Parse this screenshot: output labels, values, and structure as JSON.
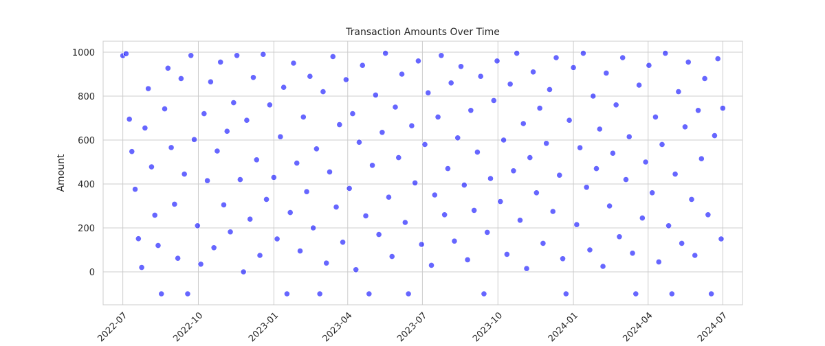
{
  "chart_data": {
    "type": "scatter",
    "title": "Transaction Amounts Over Time",
    "xlabel": "",
    "ylabel": "Amount",
    "x_range": [
      "2022-06-07",
      "2024-07-25"
    ],
    "ylim": [
      -150,
      1050
    ],
    "x_ticks": [
      "2022-07",
      "2022-10",
      "2023-01",
      "2023-04",
      "2023-07",
      "2023-10",
      "2024-01",
      "2024-04",
      "2024-07"
    ],
    "y_ticks": [
      0,
      200,
      400,
      600,
      800,
      1000
    ],
    "grid": true,
    "style": {
      "background": "#ffffff",
      "grid_color": "#cccccc",
      "point_color": "#0000ff",
      "point_opacity": 0.6,
      "point_edge_color": "#ffffff",
      "text_color": "#262626"
    },
    "series": [
      {
        "points": [
          [
            "2022-07-01",
            984
          ],
          [
            "2022-07-05",
            993
          ],
          [
            "2022-07-09",
            695
          ],
          [
            "2022-07-12",
            548
          ],
          [
            "2022-07-16",
            376
          ],
          [
            "2022-07-20",
            151
          ],
          [
            "2022-07-24",
            20
          ],
          [
            "2022-07-28",
            655
          ],
          [
            "2022-08-01",
            834
          ],
          [
            "2022-08-05",
            478
          ],
          [
            "2022-08-09",
            258
          ],
          [
            "2022-08-13",
            120
          ],
          [
            "2022-08-17",
            -100
          ],
          [
            "2022-08-21",
            742
          ],
          [
            "2022-08-25",
            927
          ],
          [
            "2022-08-29",
            566
          ],
          [
            "2022-09-02",
            308
          ],
          [
            "2022-09-06",
            62
          ],
          [
            "2022-09-10",
            880
          ],
          [
            "2022-09-14",
            445
          ],
          [
            "2022-09-18",
            -100
          ],
          [
            "2022-09-22",
            985
          ],
          [
            "2022-09-26",
            602
          ],
          [
            "2022-09-30",
            210
          ],
          [
            "2022-10-04",
            35
          ],
          [
            "2022-10-08",
            720
          ],
          [
            "2022-10-12",
            415
          ],
          [
            "2022-10-16",
            865
          ],
          [
            "2022-10-20",
            110
          ],
          [
            "2022-10-24",
            550
          ],
          [
            "2022-10-28",
            955
          ],
          [
            "2022-11-01",
            305
          ],
          [
            "2022-11-05",
            640
          ],
          [
            "2022-11-09",
            182
          ],
          [
            "2022-11-13",
            770
          ],
          [
            "2022-11-17",
            985
          ],
          [
            "2022-11-21",
            420
          ],
          [
            "2022-11-25",
            0
          ],
          [
            "2022-11-29",
            690
          ],
          [
            "2022-12-03",
            240
          ],
          [
            "2022-12-07",
            885
          ],
          [
            "2022-12-11",
            510
          ],
          [
            "2022-12-15",
            75
          ],
          [
            "2022-12-19",
            990
          ],
          [
            "2022-12-23",
            330
          ],
          [
            "2022-12-27",
            760
          ],
          [
            "2023-01-01",
            430
          ],
          [
            "2023-01-05",
            150
          ],
          [
            "2023-01-09",
            615
          ],
          [
            "2023-01-13",
            840
          ],
          [
            "2023-01-17",
            -100
          ],
          [
            "2023-01-21",
            270
          ],
          [
            "2023-01-25",
            950
          ],
          [
            "2023-01-29",
            495
          ],
          [
            "2023-02-02",
            95
          ],
          [
            "2023-02-06",
            705
          ],
          [
            "2023-02-10",
            365
          ],
          [
            "2023-02-14",
            890
          ],
          [
            "2023-02-18",
            200
          ],
          [
            "2023-02-22",
            560
          ],
          [
            "2023-02-26",
            -100
          ],
          [
            "2023-03-02",
            820
          ],
          [
            "2023-03-06",
            40
          ],
          [
            "2023-03-10",
            455
          ],
          [
            "2023-03-14",
            980
          ],
          [
            "2023-03-18",
            295
          ],
          [
            "2023-03-22",
            670
          ],
          [
            "2023-03-26",
            135
          ],
          [
            "2023-03-30",
            875
          ],
          [
            "2023-04-03",
            380
          ],
          [
            "2023-04-07",
            720
          ],
          [
            "2023-04-11",
            10
          ],
          [
            "2023-04-15",
            590
          ],
          [
            "2023-04-19",
            940
          ],
          [
            "2023-04-23",
            255
          ],
          [
            "2023-04-27",
            -100
          ],
          [
            "2023-05-01",
            485
          ],
          [
            "2023-05-05",
            805
          ],
          [
            "2023-05-09",
            170
          ],
          [
            "2023-05-13",
            635
          ],
          [
            "2023-05-17",
            995
          ],
          [
            "2023-05-21",
            340
          ],
          [
            "2023-05-25",
            70
          ],
          [
            "2023-05-29",
            750
          ],
          [
            "2023-06-02",
            520
          ],
          [
            "2023-06-06",
            900
          ],
          [
            "2023-06-10",
            225
          ],
          [
            "2023-06-14",
            -100
          ],
          [
            "2023-06-18",
            665
          ],
          [
            "2023-06-22",
            405
          ],
          [
            "2023-06-26",
            960
          ],
          [
            "2023-06-30",
            125
          ],
          [
            "2023-07-04",
            580
          ],
          [
            "2023-07-08",
            815
          ],
          [
            "2023-07-12",
            30
          ],
          [
            "2023-07-16",
            350
          ],
          [
            "2023-07-20",
            705
          ],
          [
            "2023-07-24",
            985
          ],
          [
            "2023-07-28",
            260
          ],
          [
            "2023-08-01",
            470
          ],
          [
            "2023-08-05",
            860
          ],
          [
            "2023-08-09",
            140
          ],
          [
            "2023-08-13",
            610
          ],
          [
            "2023-08-17",
            935
          ],
          [
            "2023-08-21",
            395
          ],
          [
            "2023-08-25",
            55
          ],
          [
            "2023-08-29",
            735
          ],
          [
            "2023-09-02",
            280
          ],
          [
            "2023-09-06",
            545
          ],
          [
            "2023-09-10",
            890
          ],
          [
            "2023-09-14",
            -100
          ],
          [
            "2023-09-18",
            180
          ],
          [
            "2023-09-22",
            425
          ],
          [
            "2023-09-26",
            780
          ],
          [
            "2023-09-30",
            960
          ],
          [
            "2023-10-04",
            320
          ],
          [
            "2023-10-08",
            600
          ],
          [
            "2023-10-12",
            80
          ],
          [
            "2023-10-16",
            855
          ],
          [
            "2023-10-20",
            460
          ],
          [
            "2023-10-24",
            995
          ],
          [
            "2023-10-28",
            235
          ],
          [
            "2023-11-01",
            675
          ],
          [
            "2023-11-05",
            15
          ],
          [
            "2023-11-09",
            520
          ],
          [
            "2023-11-13",
            910
          ],
          [
            "2023-11-17",
            360
          ],
          [
            "2023-11-21",
            745
          ],
          [
            "2023-11-25",
            130
          ],
          [
            "2023-11-29",
            585
          ],
          [
            "2023-12-03",
            830
          ],
          [
            "2023-12-07",
            275
          ],
          [
            "2023-12-11",
            975
          ],
          [
            "2023-12-15",
            440
          ],
          [
            "2023-12-19",
            60
          ],
          [
            "2023-12-23",
            -100
          ],
          [
            "2023-12-27",
            690
          ],
          [
            "2024-01-01",
            930
          ],
          [
            "2024-01-05",
            215
          ],
          [
            "2024-01-09",
            565
          ],
          [
            "2024-01-13",
            995
          ],
          [
            "2024-01-17",
            385
          ],
          [
            "2024-01-21",
            100
          ],
          [
            "2024-01-25",
            800
          ],
          [
            "2024-01-29",
            470
          ],
          [
            "2024-02-02",
            650
          ],
          [
            "2024-02-06",
            25
          ],
          [
            "2024-02-10",
            905
          ],
          [
            "2024-02-14",
            300
          ],
          [
            "2024-02-18",
            540
          ],
          [
            "2024-02-22",
            760
          ],
          [
            "2024-02-26",
            160
          ],
          [
            "2024-03-01",
            975
          ],
          [
            "2024-03-05",
            420
          ],
          [
            "2024-03-09",
            615
          ],
          [
            "2024-03-13",
            85
          ],
          [
            "2024-03-17",
            -100
          ],
          [
            "2024-03-21",
            850
          ],
          [
            "2024-03-25",
            245
          ],
          [
            "2024-03-29",
            500
          ],
          [
            "2024-04-02",
            940
          ],
          [
            "2024-04-06",
            360
          ],
          [
            "2024-04-10",
            705
          ],
          [
            "2024-04-14",
            45
          ],
          [
            "2024-04-18",
            580
          ],
          [
            "2024-04-22",
            995
          ],
          [
            "2024-04-26",
            210
          ],
          [
            "2024-04-30",
            -100
          ],
          [
            "2024-05-04",
            445
          ],
          [
            "2024-05-08",
            820
          ],
          [
            "2024-05-12",
            130
          ],
          [
            "2024-05-16",
            660
          ],
          [
            "2024-05-20",
            955
          ],
          [
            "2024-05-24",
            330
          ],
          [
            "2024-05-28",
            75
          ],
          [
            "2024-06-01",
            735
          ],
          [
            "2024-06-05",
            515
          ],
          [
            "2024-06-09",
            880
          ],
          [
            "2024-06-13",
            260
          ],
          [
            "2024-06-17",
            -100
          ],
          [
            "2024-06-21",
            620
          ],
          [
            "2024-06-25",
            970
          ],
          [
            "2024-06-29",
            150
          ],
          [
            "2024-07-01",
            745
          ]
        ]
      }
    ]
  }
}
